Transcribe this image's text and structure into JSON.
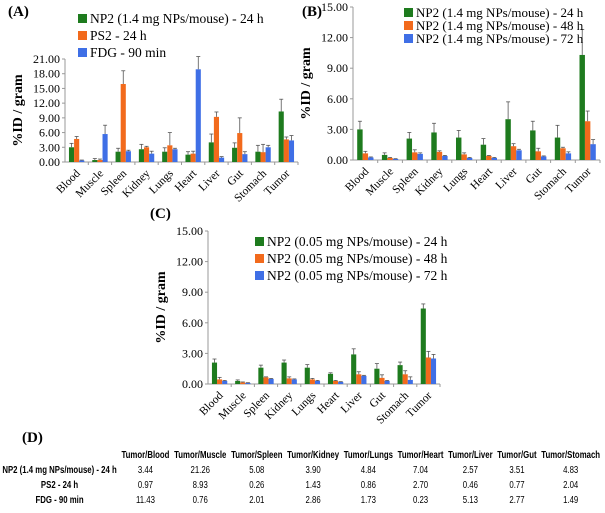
{
  "colors": {
    "green": "#1e7b1e",
    "orange": "#f26a1c",
    "blue": "#3f6fe6"
  },
  "chart_data": [
    {
      "panel": "(A)",
      "type": "bar",
      "ylabel": "%ID / gram",
      "ylim": [
        0,
        21
      ],
      "yticks": [
        "0.00",
        "3.00",
        "6.00",
        "9.00",
        "12.00",
        "15.00",
        "18.00",
        "21.00"
      ],
      "legend_placement": "top",
      "categories": [
        "Blood",
        "Muscle",
        "Spleen",
        "Kidney",
        "Lungs",
        "Heart",
        "Liver",
        "Gut",
        "Stomach",
        "Tumor"
      ],
      "series": [
        {
          "name": "NP2 (1.4 mg NPs/mouse) - 24 h",
          "color": "green",
          "values": [
            3.0,
            0.4,
            2.1,
            2.6,
            2.1,
            1.5,
            4.0,
            2.9,
            2.1,
            10.3
          ],
          "errors": [
            0.8,
            0.3,
            0.7,
            1.0,
            0.8,
            0.6,
            1.7,
            1.0,
            1.3,
            2.5
          ]
        },
        {
          "name": "PS2 - 24 h",
          "color": "orange",
          "values": [
            4.7,
            0.4,
            15.9,
            3.0,
            3.4,
            1.7,
            9.2,
            5.9,
            2.0,
            4.6
          ],
          "errors": [
            0.5,
            0.2,
            2.7,
            0.2,
            2.6,
            0.5,
            1.0,
            3.1,
            1.6,
            0.5
          ]
        },
        {
          "name": "FDG - 90 min",
          "color": "blue",
          "values": [
            0.3,
            5.7,
            2.2,
            1.7,
            2.6,
            18.9,
            0.9,
            1.6,
            3.0,
            4.4
          ],
          "errors": [
            0.1,
            1.8,
            0.2,
            0.5,
            0.2,
            2.6,
            0.2,
            0.5,
            0.4,
            1.0
          ]
        }
      ]
    },
    {
      "panel": "(B)",
      "type": "bar",
      "ylabel": "%ID / gram",
      "ylim": [
        0,
        15
      ],
      "yticks": [
        "0.00",
        "3.00",
        "6.00",
        "9.00",
        "12.00",
        "15.00"
      ],
      "legend_placement": "top-right",
      "categories": [
        "Blood",
        "Muscle",
        "Spleen",
        "Kidney",
        "Lungs",
        "Heart",
        "Liver",
        "Gut",
        "Stomach",
        "Tumor"
      ],
      "series": [
        {
          "name": "NP2 (1.4 mg NPs/mouse) - 24 h",
          "color": "green",
          "values": [
            3.0,
            0.5,
            2.1,
            2.7,
            2.2,
            1.5,
            4.0,
            2.9,
            2.2,
            10.3
          ],
          "errors": [
            0.8,
            0.2,
            0.6,
            0.9,
            0.7,
            0.6,
            1.7,
            0.9,
            1.2,
            2.5
          ]
        },
        {
          "name": "NP2 (1.4 mg NPs/mouse) - 48 h",
          "color": "orange",
          "values": [
            0.65,
            0.2,
            0.75,
            0.8,
            0.55,
            0.4,
            1.35,
            0.85,
            1.15,
            3.8
          ],
          "errors": [
            0.2,
            0.05,
            0.25,
            0.1,
            0.15,
            0.05,
            0.25,
            0.3,
            0.1,
            1.0
          ]
        },
        {
          "name": "NP2 (1.4 mg NPs/mouse) - 72 h",
          "color": "blue",
          "values": [
            0.25,
            0.1,
            0.6,
            0.4,
            0.2,
            0.2,
            0.95,
            0.35,
            0.65,
            1.55
          ],
          "errors": [
            0.05,
            0.03,
            0.1,
            0.05,
            0.05,
            0.05,
            0.1,
            0.05,
            0.15,
            0.45
          ]
        }
      ]
    },
    {
      "panel": "(C)",
      "type": "bar",
      "ylabel": "%ID / gram",
      "ylim": [
        0,
        15
      ],
      "yticks": [
        "0.00",
        "3.00",
        "6.00",
        "9.00",
        "12.00",
        "15.00"
      ],
      "legend_placement": "top-right",
      "categories": [
        "Blood",
        "Muscle",
        "Spleen",
        "Kidney",
        "Lungs",
        "Heart",
        "Liver",
        "Gut",
        "Stomach",
        "Tumor"
      ],
      "series": [
        {
          "name": "NP2 (0.05 mg NPs/mouse) - 24 h",
          "color": "green",
          "values": [
            2.1,
            0.3,
            1.6,
            2.1,
            1.6,
            1.0,
            2.9,
            1.5,
            1.85,
            7.4
          ],
          "errors": [
            0.35,
            0.1,
            0.25,
            0.25,
            0.3,
            0.1,
            0.55,
            0.5,
            0.3,
            0.45
          ]
        },
        {
          "name": "NP2 (0.05 mg NPs/mouse) - 48 h",
          "color": "orange",
          "values": [
            0.45,
            0.15,
            0.65,
            0.55,
            0.45,
            0.3,
            0.95,
            0.6,
            0.95,
            2.6
          ],
          "errors": [
            0.2,
            0.05,
            0.05,
            0.15,
            0.1,
            0.05,
            0.25,
            0.3,
            0.35,
            0.6
          ]
        },
        {
          "name": "NP2 (0.05 mg NPs/mouse) - 72 h",
          "color": "blue",
          "values": [
            0.3,
            0.1,
            0.5,
            0.45,
            0.3,
            0.2,
            0.8,
            0.3,
            0.4,
            2.5
          ],
          "errors": [
            0.05,
            0.03,
            0.05,
            0.05,
            0.05,
            0.03,
            0.05,
            0.05,
            0.3,
            0.4
          ]
        }
      ]
    }
  ],
  "table": {
    "label": "(D)",
    "headers": [
      "Tumor/Blood",
      "Tumor/Muscle",
      "Tumor/Spleen",
      "Tumor/Kidney",
      "Tumor/Lungs",
      "Tumor/Heart",
      "Tumor/Liver",
      "Tumor/Gut",
      "Tumor/Stomach"
    ],
    "rows": [
      {
        "name": "NP2 (1.4 mg NPs/mouse) - 24 h",
        "values": [
          "3.44",
          "21.26",
          "5.08",
          "3.90",
          "4.84",
          "7.04",
          "2.57",
          "3.51",
          "4.83"
        ]
      },
      {
        "name": "PS2 - 24 h",
        "values": [
          "0.97",
          "8.93",
          "0.26",
          "1.43",
          "0.86",
          "2.70",
          "0.46",
          "0.77",
          "2.04"
        ]
      },
      {
        "name": "FDG - 90 min",
        "values": [
          "11.43",
          "0.76",
          "2.01",
          "2.86",
          "1.73",
          "0.23",
          "5.13",
          "2.77",
          "1.49"
        ]
      }
    ]
  }
}
